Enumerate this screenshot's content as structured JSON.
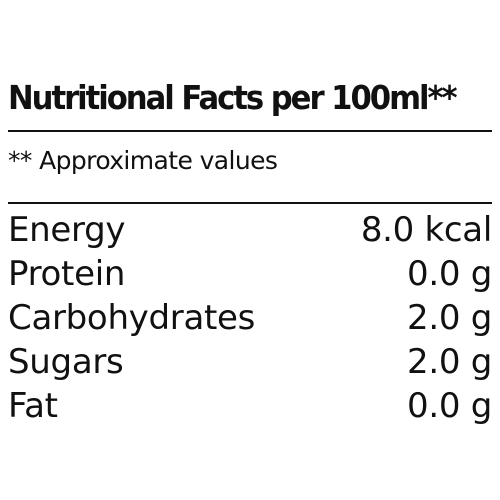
{
  "label": {
    "title": "Nutritional Facts per 100ml**",
    "note": "** Approximate values",
    "rows": [
      {
        "name": "Energy",
        "value": "8.0 kcal"
      },
      {
        "name": "Protein",
        "value": "0.0 g"
      },
      {
        "name": "Carbohydrates",
        "value": "2.0 g"
      },
      {
        "name": "Sugars",
        "value": "2.0 g"
      },
      {
        "name": "Fat",
        "value": "0.0 g"
      }
    ]
  }
}
